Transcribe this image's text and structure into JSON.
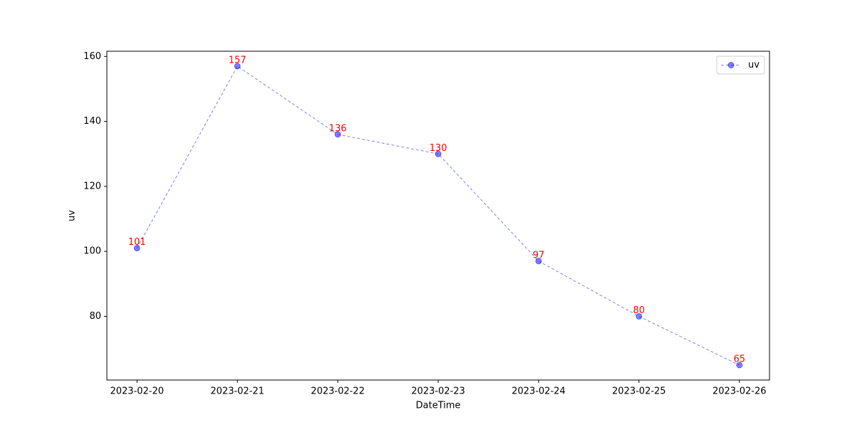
{
  "chart_data": {
    "type": "line",
    "xlabel": "DateTime",
    "ylabel": "uv",
    "categories": [
      "2023-02-20",
      "2023-02-21",
      "2023-02-22",
      "2023-02-23",
      "2023-02-24",
      "2023-02-25",
      "2023-02-26"
    ],
    "series": [
      {
        "name": "uv",
        "color": "#0000ff",
        "values": [
          101,
          157,
          136,
          130,
          97,
          80,
          65
        ]
      }
    ],
    "value_label_color": "#ff0000",
    "ylim": [
      60.4,
      161.6
    ],
    "yticks": [
      80,
      100,
      120,
      140,
      160
    ],
    "grid": false,
    "legend": "upper right",
    "linestyle": "dashed"
  }
}
